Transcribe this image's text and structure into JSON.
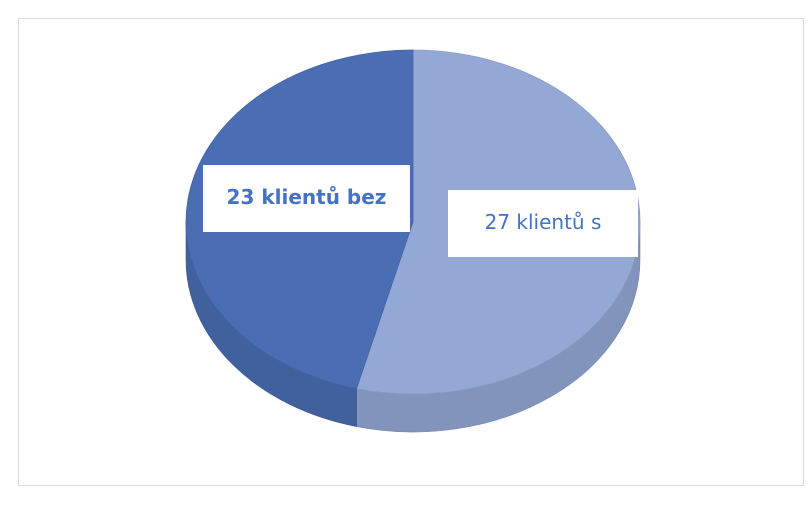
{
  "chart_data": {
    "type": "pie",
    "values": [
      27,
      23
    ],
    "value_labels": [
      "27 klientů s",
      "23 klientů bez"
    ],
    "colors": [
      "#94a8d6",
      "#4a6db3"
    ],
    "label_weights": [
      "normal",
      "bold"
    ]
  }
}
